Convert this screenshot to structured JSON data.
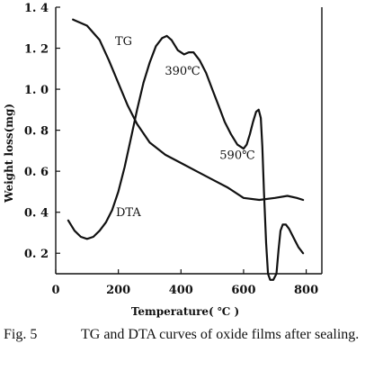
{
  "chart_data": {
    "type": "line",
    "xlabel": "Temperature( ℃ )",
    "ylabel": "Weight loss(mg)",
    "xlim": [
      0,
      850
    ],
    "ylim": [
      0.1,
      1.4
    ],
    "x_ticks": [
      {
        "value": 0,
        "label": "0"
      },
      {
        "value": 200,
        "label": "200"
      },
      {
        "value": 400,
        "label": "400"
      },
      {
        "value": 600,
        "label": "600"
      },
      {
        "value": 800,
        "label": "800"
      }
    ],
    "y_ticks": [
      {
        "value": 0.2,
        "label": "0. 2"
      },
      {
        "value": 0.4,
        "label": "0. 4"
      },
      {
        "value": 0.6,
        "label": "0. 6"
      },
      {
        "value": 0.8,
        "label": "0. 8"
      },
      {
        "value": 1.0,
        "label": "1. 0"
      },
      {
        "value": 1.2,
        "label": "1. 2"
      },
      {
        "value": 1.4,
        "label": "1. 4"
      }
    ],
    "series": [
      {
        "name": "TG",
        "label": "TG",
        "x": [
          55,
          100,
          140,
          170,
          200,
          230,
          260,
          300,
          350,
          400,
          450,
          500,
          550,
          600,
          650,
          700,
          740,
          770,
          790
        ],
        "y": [
          1.34,
          1.31,
          1.24,
          1.14,
          1.03,
          0.92,
          0.83,
          0.74,
          0.68,
          0.64,
          0.6,
          0.56,
          0.52,
          0.47,
          0.46,
          0.47,
          0.48,
          0.47,
          0.46
        ]
      },
      {
        "name": "DTA",
        "label": "DTA",
        "x": [
          40,
          60,
          80,
          100,
          120,
          140,
          160,
          180,
          200,
          220,
          240,
          260,
          280,
          300,
          320,
          340,
          355,
          370,
          390,
          410,
          425,
          440,
          460,
          480,
          500,
          520,
          540,
          560,
          580,
          600,
          610,
          620,
          630,
          640,
          648,
          655,
          660,
          665,
          672,
          678,
          685,
          695,
          705,
          712,
          718,
          725,
          735,
          745,
          755,
          765,
          775,
          785,
          790
        ],
        "y": [
          0.36,
          0.31,
          0.28,
          0.27,
          0.28,
          0.31,
          0.35,
          0.41,
          0.5,
          0.62,
          0.76,
          0.9,
          1.03,
          1.13,
          1.21,
          1.25,
          1.26,
          1.24,
          1.19,
          1.17,
          1.18,
          1.18,
          1.14,
          1.08,
          1.0,
          0.92,
          0.84,
          0.78,
          0.73,
          0.71,
          0.73,
          0.78,
          0.84,
          0.89,
          0.9,
          0.86,
          0.72,
          0.5,
          0.25,
          0.1,
          0.07,
          0.07,
          0.1,
          0.22,
          0.31,
          0.34,
          0.34,
          0.32,
          0.29,
          0.26,
          0.23,
          0.21,
          0.2
        ]
      }
    ],
    "annotations": [
      {
        "text": "390℃",
        "x": 405,
        "y": 1.07
      },
      {
        "text": "590℃",
        "x": 580,
        "y": 0.66
      }
    ]
  },
  "caption": {
    "number": "Fig. 5",
    "text": "TG and DTA curves of oxide films after sealing."
  }
}
